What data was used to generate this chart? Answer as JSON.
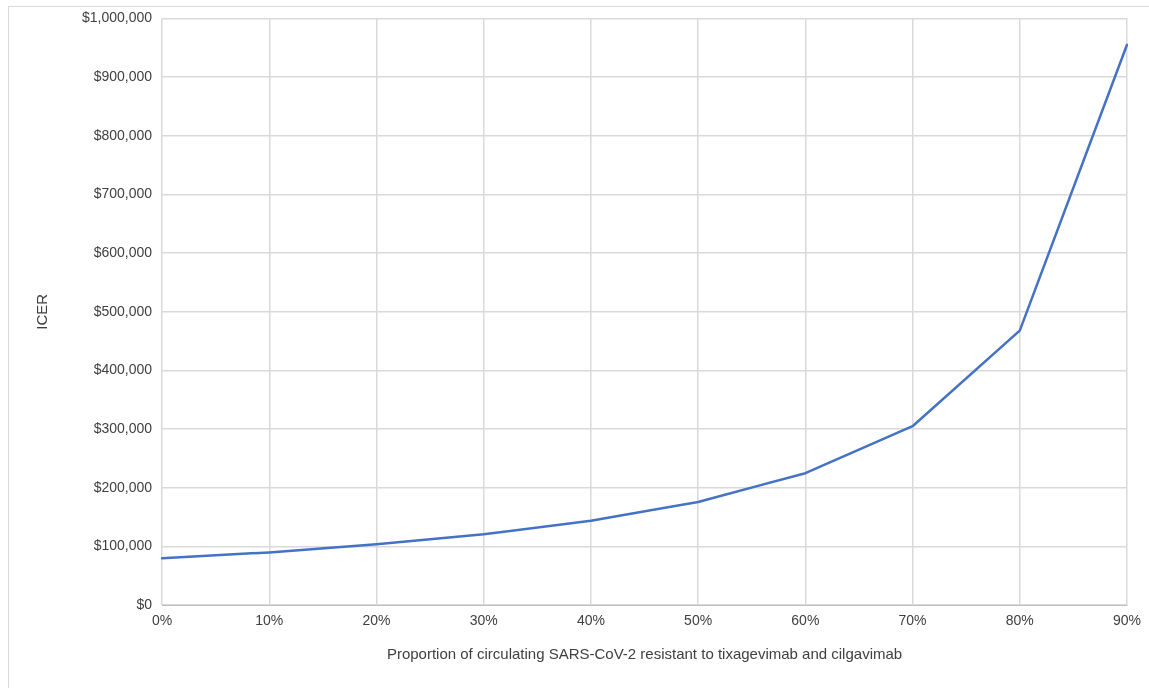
{
  "chart_data": {
    "type": "line",
    "xlabel": "Proportion of circulating SARS-CoV-2 resistant to tixagevimab and cilgavimab",
    "ylabel": "ICER",
    "categories": [
      "0%",
      "10%",
      "20%",
      "30%",
      "40%",
      "50%",
      "60%",
      "70%",
      "80%",
      "90%"
    ],
    "series": [
      {
        "color": "#4472c4",
        "values": [
          80000,
          90000,
          104000,
          121000,
          144000,
          176000,
          225000,
          305000,
          468000,
          955000
        ]
      }
    ],
    "ylim": [
      0,
      1000000
    ],
    "yticks": [
      {
        "value": 0,
        "label": "$0"
      },
      {
        "value": 100000,
        "label": "$100,000"
      },
      {
        "value": 200000,
        "label": "$200,000"
      },
      {
        "value": 300000,
        "label": "$300,000"
      },
      {
        "value": 400000,
        "label": "$400,000"
      },
      {
        "value": 500000,
        "label": "$500,000"
      },
      {
        "value": 600000,
        "label": "$600,000"
      },
      {
        "value": 700000,
        "label": "$700,000"
      },
      {
        "value": 800000,
        "label": "$800,000"
      },
      {
        "value": 900000,
        "label": "$900,000"
      },
      {
        "value": 1000000,
        "label": "$1,000,000"
      }
    ],
    "grid": true,
    "legend": false,
    "marker": "none",
    "line_style": "solid"
  }
}
